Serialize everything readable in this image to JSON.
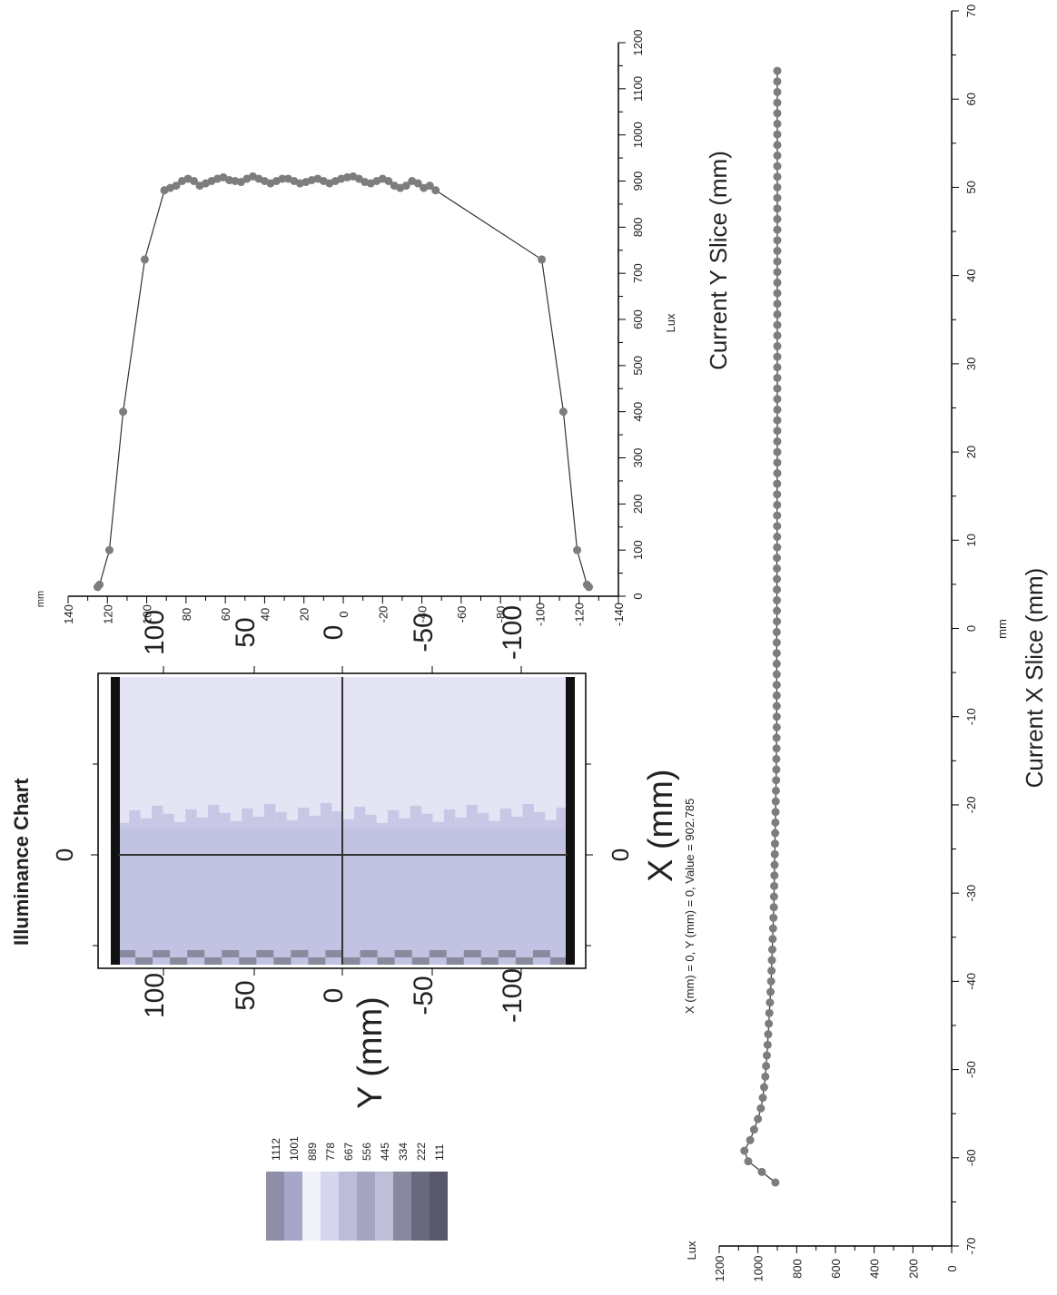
{
  "heatmap": {
    "title": "Illuminance Chart",
    "xlabel": "X (mm)",
    "ylabel": "Y (mm)",
    "x_ticks": [
      0
    ],
    "y_ticks": [
      100,
      50,
      0,
      -50,
      -100
    ],
    "cursor_label": "X (mm) = 0, Y (mm) = 0, Value = 902.785",
    "legend_levels": [
      1112,
      1001,
      889,
      778,
      667,
      556,
      445,
      334,
      222,
      111
    ],
    "legend_colors": [
      "#8e8ea6",
      "#a6a6ca",
      "#f2f2fa",
      "#d6d6ee",
      "#bcbcd8",
      "#a4a4c0",
      "#bebed6",
      "#8888a0",
      "#6a6a7e",
      "#58586a"
    ]
  },
  "chart_data": [
    {
      "type": "line",
      "title": "Current Y Slice (mm)",
      "xlabel": "Lux",
      "ylabel": "mm",
      "xlim": [
        0,
        1200
      ],
      "ylim": [
        -140,
        140
      ],
      "x_ticks": [
        0,
        100,
        200,
        300,
        400,
        500,
        600,
        700,
        800,
        900,
        1000,
        1100,
        1200
      ],
      "y_ticks": [
        140,
        120,
        100,
        80,
        60,
        40,
        20,
        0,
        -20,
        -40,
        -60,
        -80,
        -100,
        -120,
        -140
      ],
      "series": [
        {
          "x": [
            20,
            25,
            100,
            400,
            730,
            880,
            885,
            890,
            900,
            905,
            900,
            890,
            895,
            900,
            905,
            908,
            902,
            900,
            898,
            905,
            910,
            905,
            900,
            895,
            900,
            905,
            905,
            900,
            895,
            898,
            902,
            905,
            900,
            895,
            900,
            905,
            908,
            910,
            905,
            898,
            895,
            900,
            905,
            900,
            890,
            885,
            890,
            900,
            895,
            885,
            890,
            880,
            730,
            400,
            100,
            25,
            20
          ],
          "y": [
            125,
            124,
            119,
            112,
            101,
            91,
            88,
            85,
            82,
            79,
            76,
            73,
            70,
            67,
            64,
            61,
            58,
            55,
            52,
            49,
            46,
            43,
            40,
            37,
            34,
            31,
            28,
            25,
            22,
            19,
            16,
            13,
            10,
            7,
            4,
            1,
            -2,
            -5,
            -8,
            -11,
            -14,
            -17,
            -20,
            -23,
            -26,
            -29,
            -32,
            -35,
            -38,
            -41,
            -44,
            -47,
            -101,
            -112,
            -119,
            -124,
            -125
          ]
        }
      ]
    },
    {
      "type": "line",
      "title": "Current X Slice (mm)",
      "xlabel": "mm",
      "ylabel": "Lux",
      "xlim": [
        -70,
        70
      ],
      "ylim": [
        0,
        1200
      ],
      "x_ticks": [
        -70,
        -60,
        -50,
        -40,
        -30,
        -20,
        -10,
        0,
        10,
        20,
        30,
        40,
        50,
        60,
        70
      ],
      "y_ticks": [
        0,
        200,
        400,
        600,
        800,
        1000,
        1200
      ],
      "series": [
        {
          "x": [
            -62.8,
            -61.6,
            -60.4,
            -59.2,
            -58.0,
            -56.8,
            -55.6,
            -54.4,
            -53.2,
            -52.0,
            -50.8,
            -49.6,
            -48.4,
            -47.2,
            -46.0,
            -44.8,
            -43.6,
            -42.4,
            -41.2,
            -40.0,
            -38.8,
            -37.6,
            -36.4,
            -35.2,
            -34.0,
            -32.8,
            -31.6,
            -30.4,
            -29.2,
            -28.0,
            -26.8,
            -25.6,
            -24.4,
            -23.2,
            -22.0,
            -20.8,
            -19.6,
            -18.4,
            -17.2,
            -16.0,
            -14.8,
            -13.6,
            -12.4,
            -11.2,
            -10.0,
            -8.8,
            -7.6,
            -6.4,
            -5.2,
            -4.0,
            -2.8,
            -1.6,
            -0.4,
            0.8,
            2.0,
            3.2,
            4.4,
            5.6,
            6.8,
            8.0,
            9.2,
            10.4,
            11.6,
            12.8,
            14.0,
            15.2,
            16.4,
            17.6,
            18.8,
            20.0,
            21.2,
            22.4,
            23.6,
            24.8,
            26.0,
            27.2,
            28.4,
            29.6,
            30.8,
            32.0,
            33.2,
            34.4,
            35.6,
            36.8,
            38.0,
            39.2,
            40.4,
            41.6,
            42.8,
            44.0,
            45.2,
            46.4,
            47.6,
            48.8,
            50.0,
            51.2,
            52.4,
            53.6,
            54.8,
            56.0,
            57.2,
            58.4,
            59.6,
            60.8,
            62.0,
            63.2
          ],
          "y": [
            910,
            980,
            1050,
            1070,
            1040,
            1020,
            1000,
            985,
            975,
            968,
            962,
            958,
            954,
            950,
            947,
            944,
            941,
            938,
            935,
            932,
            930,
            928,
            926,
            924,
            922,
            920,
            918,
            917,
            916,
            915,
            914,
            913,
            912,
            911,
            910,
            909,
            908,
            907,
            906,
            905,
            905,
            904,
            904,
            903,
            903,
            903,
            903,
            903,
            903,
            903,
            903,
            903,
            903,
            902,
            902,
            902,
            902,
            902,
            902,
            902,
            901,
            901,
            901,
            901,
            901,
            901,
            901,
            900,
            900,
            900,
            900,
            900,
            900,
            900,
            900,
            900,
            900,
            900,
            900,
            900,
            900,
            900,
            900,
            900,
            900,
            900,
            900,
            900,
            900,
            900,
            900,
            900,
            900,
            900,
            900,
            900,
            900,
            900,
            900,
            900,
            900,
            900,
            900,
            900,
            900,
            900
          ]
        }
      ]
    }
  ]
}
